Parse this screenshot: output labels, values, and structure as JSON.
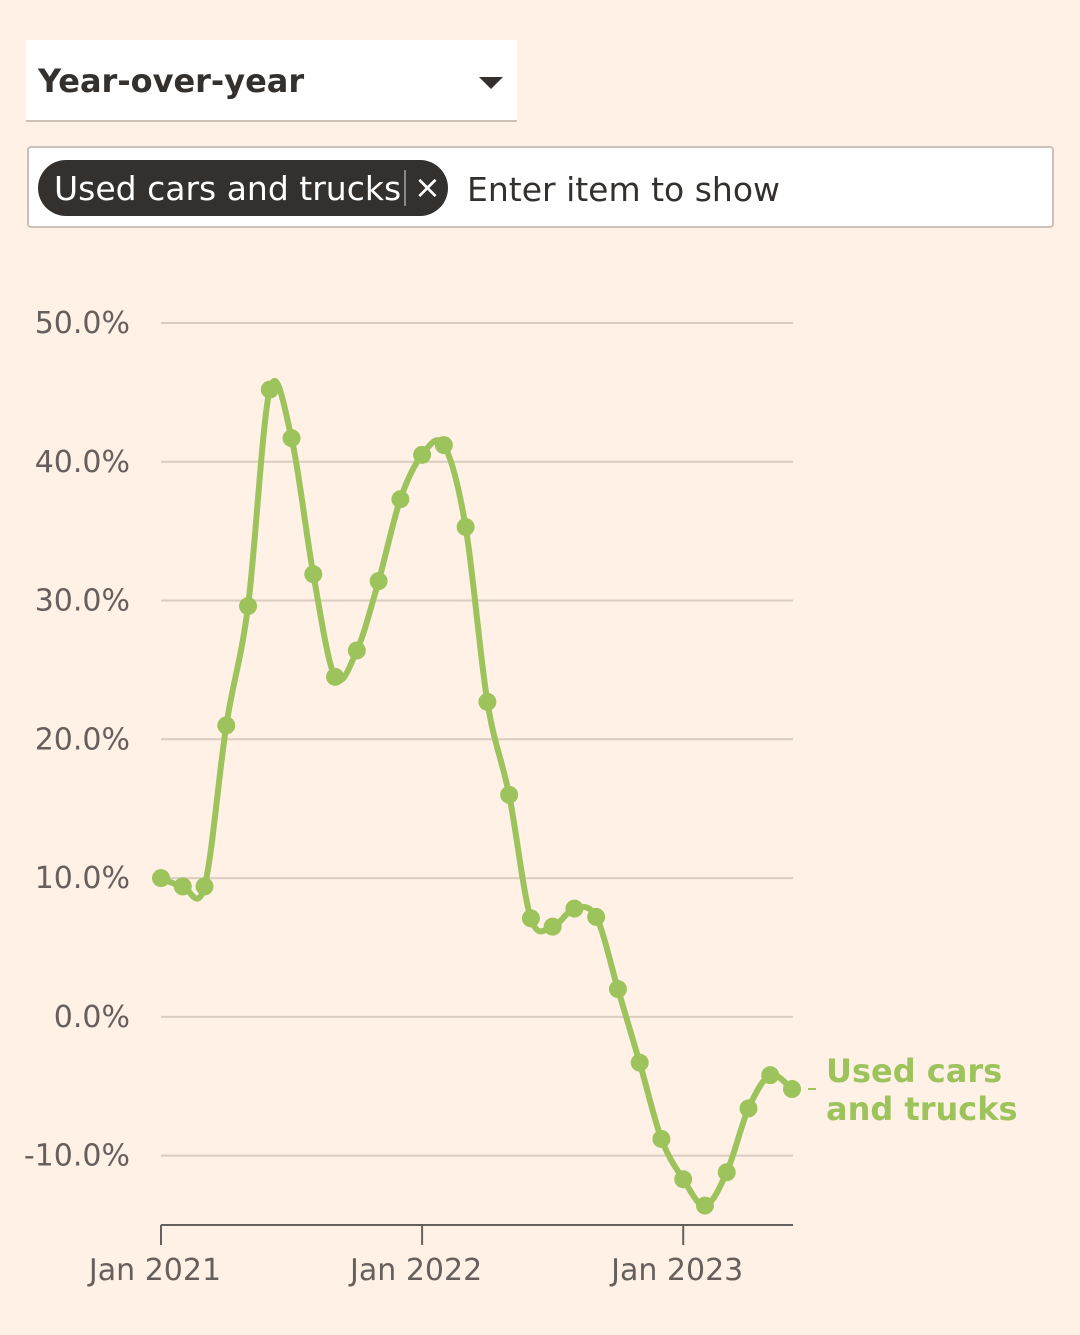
{
  "controls": {
    "dropdown": {
      "value": "Year-over-year"
    },
    "filter": {
      "tags": [
        "Used cars and trucks"
      ],
      "placeholder": "Enter item to show"
    }
  },
  "chart_data": {
    "type": "line",
    "categories": [
      "Jan 2021",
      null,
      null,
      null,
      null,
      null,
      null,
      null,
      null,
      null,
      null,
      null,
      "Jan 2022",
      null,
      null,
      null,
      null,
      null,
      null,
      null,
      null,
      null,
      null,
      null,
      "Jan 2023",
      null,
      null,
      null,
      null,
      null
    ],
    "series": [
      {
        "name": "Used cars and trucks",
        "color": "#9dc35c",
        "values": [
          10.0,
          9.4,
          9.4,
          21.0,
          29.6,
          45.2,
          41.7,
          31.9,
          24.5,
          26.4,
          31.4,
          37.3,
          40.5,
          41.2,
          35.3,
          22.7,
          16.0,
          7.1,
          6.5,
          7.8,
          7.2,
          2.0,
          -3.3,
          -8.8,
          -11.7,
          -13.6,
          -11.2,
          -6.6,
          -4.2,
          -5.2
        ]
      }
    ],
    "ylim": [
      -15,
      50
    ],
    "yticks": [
      {
        "value": -10,
        "label": "-10.0%"
      },
      {
        "value": 0,
        "label": "0.0%"
      },
      {
        "value": 10,
        "label": "10.0%"
      },
      {
        "value": 20,
        "label": "20.0%"
      },
      {
        "value": 30,
        "label": "30.0%"
      },
      {
        "value": 40,
        "label": "40.0%"
      },
      {
        "value": 50,
        "label": "50.0%"
      }
    ],
    "grid": true
  }
}
